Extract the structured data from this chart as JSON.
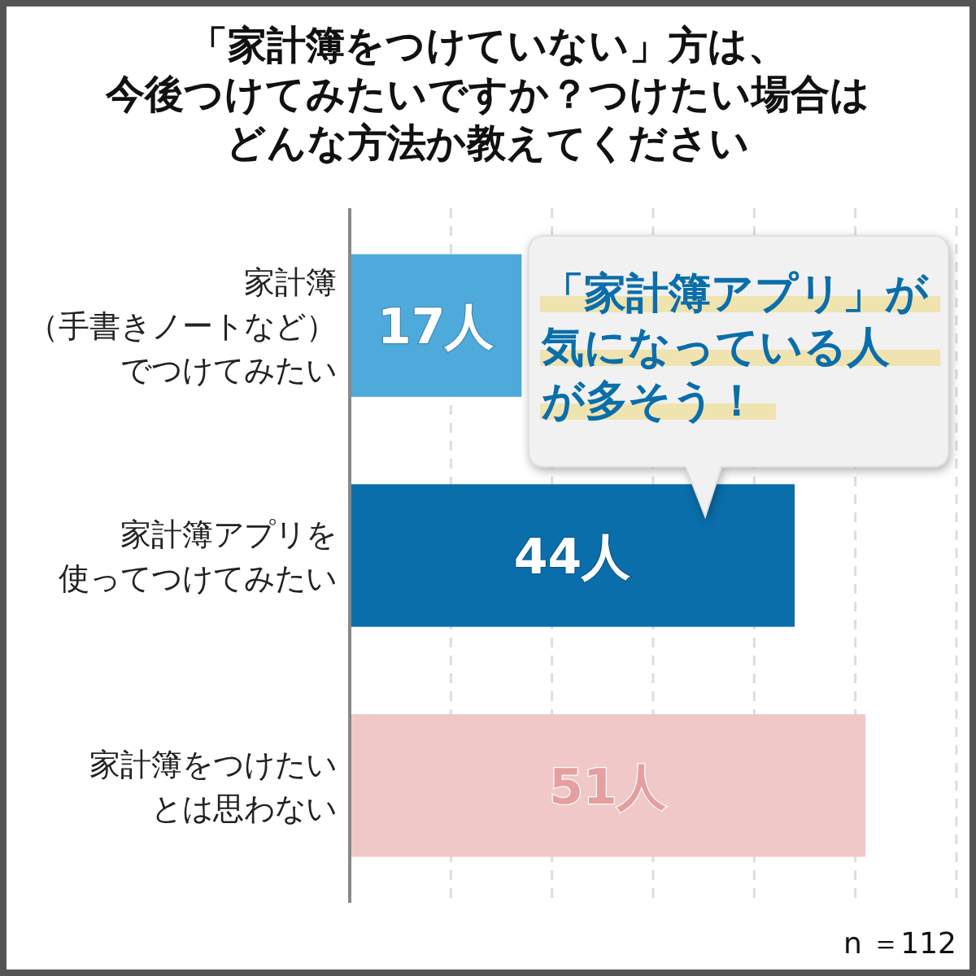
{
  "chart_data": {
    "type": "bar",
    "orientation": "horizontal",
    "title": "「家計簿をつけていない」方は、今後つけてみたいですか？つけたい場合はどんな方法か教えてください",
    "categories": [
      "家計簿（手書きノートなど）でつけてみたい",
      "家計簿アプリを使ってつけてみたい",
      "家計簿をつけたいとは思わない"
    ],
    "values": [
      17,
      44,
      51
    ],
    "colors": [
      "#4eaadb",
      "#0a6eab",
      "#f0c8c8"
    ],
    "value_labels": [
      "17人",
      "44人",
      "51人"
    ],
    "xlim": [
      0,
      60
    ],
    "xticks": [
      {
        "value": 10,
        "label": null
      },
      {
        "value": 20,
        "label": null
      },
      {
        "value": 30,
        "label": null
      },
      {
        "value": 40,
        "label": null
      },
      {
        "value": 50,
        "label": null
      },
      {
        "value": 60,
        "label": null
      }
    ],
    "tick_labels": "y",
    "grid": "x",
    "annotations": [
      "「家計簿アプリ」が気になっている人が多そう！",
      "n ＝112"
    ]
  }
}
